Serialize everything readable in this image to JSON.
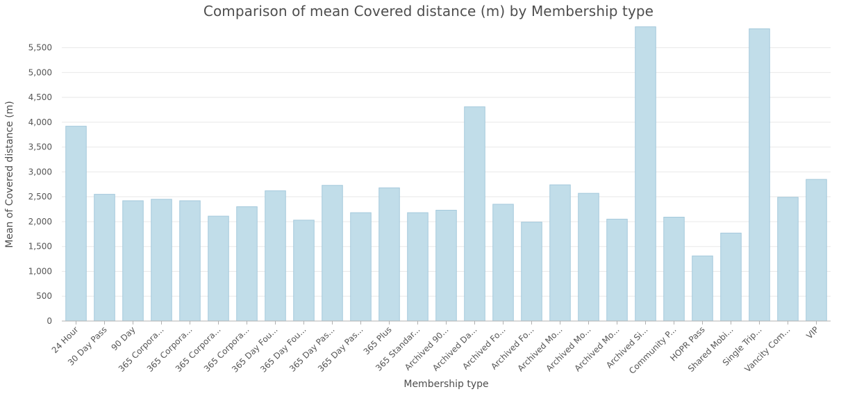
{
  "chart_data": {
    "type": "bar",
    "title": "Comparison of mean Covered distance (m) by Membership type",
    "xlabel": "Membership type",
    "ylabel": "Mean of Covered distance (m)",
    "ylim": [
      0,
      5900
    ],
    "yticks": [
      0,
      500,
      1000,
      1500,
      2000,
      2500,
      3000,
      3500,
      4000,
      4500,
      5000,
      5500
    ],
    "ytick_labels": [
      "0",
      "500",
      "1,000",
      "1,500",
      "2,000",
      "2,500",
      "3,000",
      "3,500",
      "4,000",
      "4,500",
      "5,000",
      "5,500"
    ],
    "grid": true,
    "legend": "none",
    "categories": [
      "24 Hour",
      "30 Day Pass",
      "90 Day",
      "365 Corpora...",
      "365 Corpora...",
      "365 Corpora...",
      "365 Corpora...",
      "365 Day Fou...",
      "365 Day Fou...",
      "365 Day Pas...",
      "365 Day Pas...",
      "365 Plus",
      "365 Standar...",
      "Archived 90...",
      "Archived Da...",
      "Archived Fo...",
      "Archived Fo...",
      "Archived Mo...",
      "Archived Mo...",
      "Archived Mo...",
      "Archived Si...",
      "Community P...",
      "HOPR Pass",
      "Shared Mobi...",
      "Single Trip...",
      "Vancity Com...",
      "VIP"
    ],
    "values": [
      3920,
      2550,
      2420,
      2450,
      2420,
      2110,
      2300,
      2620,
      2030,
      2730,
      2180,
      2680,
      2180,
      2230,
      4310,
      2350,
      1990,
      2740,
      2570,
      2050,
      5920,
      2090,
      1310,
      1770,
      5880,
      2490,
      2850
    ],
    "colors": {
      "bar_fill": "#c1dde9",
      "bar_stroke": "#a4c9dc",
      "grid": "#e8e8e8",
      "axis": "#b0b0b0"
    }
  }
}
